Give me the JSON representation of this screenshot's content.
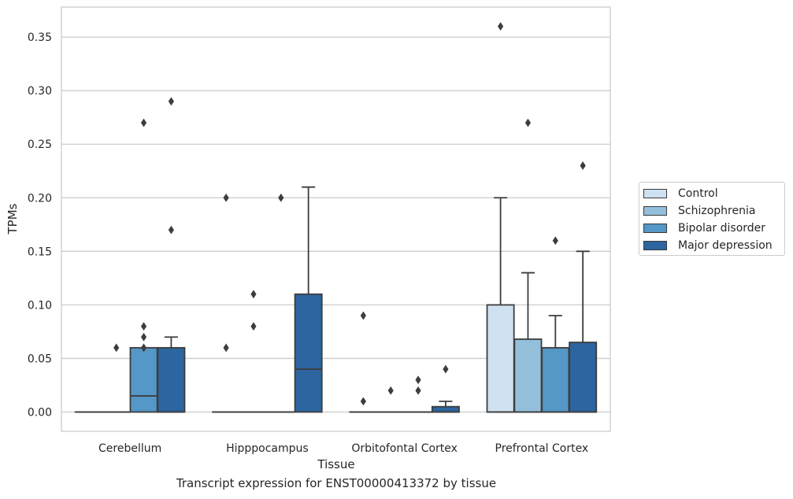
{
  "caption": "Transcript expression for ENST00000413372 by tissue",
  "chart_data": {
    "type": "box",
    "xlabel": "Tissue",
    "ylabel": "TPMs",
    "ylim": [
      -0.018,
      0.378
    ],
    "yticks": [
      0.0,
      0.05,
      0.1,
      0.15,
      0.2,
      0.25,
      0.3,
      0.35
    ],
    "ytick_labels": [
      "0.00",
      "0.05",
      "0.10",
      "0.15",
      "0.20",
      "0.25",
      "0.30",
      "0.35"
    ],
    "grid": "horizontal",
    "legend_position": "right",
    "categories": [
      "Cerebellum",
      "Hipppocampus",
      "Orbitofontal Cortex",
      "Prefrontal Cortex"
    ],
    "series": [
      {
        "name": "Control",
        "color": "#cfe1f0",
        "boxes": [
          {
            "q1": 0,
            "median": 0,
            "q3": 0,
            "whisker_low": 0,
            "whisker_high": 0,
            "outliers": []
          },
          {
            "q1": 0,
            "median": 0,
            "q3": 0,
            "whisker_low": 0,
            "whisker_high": 0,
            "outliers": [
              0.06,
              0.2
            ]
          },
          {
            "q1": 0,
            "median": 0,
            "q3": 0,
            "whisker_low": 0,
            "whisker_high": 0,
            "outliers": [
              0.01,
              0.09
            ]
          },
          {
            "q1": 0,
            "median": 0,
            "q3": 0.1,
            "whisker_low": 0,
            "whisker_high": 0.2,
            "outliers": [
              0.36
            ]
          }
        ]
      },
      {
        "name": "Schizophrenia",
        "color": "#93bfdb",
        "boxes": [
          {
            "q1": 0,
            "median": 0,
            "q3": 0,
            "whisker_low": 0,
            "whisker_high": 0,
            "outliers": [
              0.06
            ]
          },
          {
            "q1": 0,
            "median": 0,
            "q3": 0,
            "whisker_low": 0,
            "whisker_high": 0,
            "outliers": [
              0.08,
              0.11
            ]
          },
          {
            "q1": 0,
            "median": 0,
            "q3": 0,
            "whisker_low": 0,
            "whisker_high": 0,
            "outliers": [
              0.02
            ]
          },
          {
            "q1": 0,
            "median": 0,
            "q3": 0.068,
            "whisker_low": 0,
            "whisker_high": 0.13,
            "outliers": [
              0.27
            ]
          }
        ]
      },
      {
        "name": "Bipolar disorder",
        "color": "#5597c6",
        "boxes": [
          {
            "q1": 0,
            "median": 0.015,
            "q3": 0.06,
            "whisker_low": 0,
            "whisker_high": 0.06,
            "outliers": [
              0.06,
              0.07,
              0.08,
              0.27
            ]
          },
          {
            "q1": 0,
            "median": 0,
            "q3": 0,
            "whisker_low": 0,
            "whisker_high": 0,
            "outliers": [
              0.2
            ]
          },
          {
            "q1": 0,
            "median": 0,
            "q3": 0,
            "whisker_low": 0,
            "whisker_high": 0,
            "outliers": [
              0.02,
              0.03
            ]
          },
          {
            "q1": 0,
            "median": 0,
            "q3": 0.06,
            "whisker_low": 0,
            "whisker_high": 0.09,
            "outliers": [
              0.16
            ]
          }
        ]
      },
      {
        "name": "Major depression",
        "color": "#2c659f",
        "boxes": [
          {
            "q1": 0,
            "median": 0,
            "q3": 0.06,
            "whisker_low": 0,
            "whisker_high": 0.07,
            "outliers": [
              0.17,
              0.29
            ]
          },
          {
            "q1": 0,
            "median": 0.04,
            "q3": 0.11,
            "whisker_low": 0,
            "whisker_high": 0.21,
            "outliers": []
          },
          {
            "q1": 0,
            "median": 0,
            "q3": 0.005,
            "whisker_low": 0,
            "whisker_high": 0.01,
            "outliers": [
              0.04
            ]
          },
          {
            "q1": 0,
            "median": 0,
            "q3": 0.065,
            "whisker_low": 0,
            "whisker_high": 0.15,
            "outliers": [
              0.23
            ]
          }
        ]
      }
    ]
  }
}
